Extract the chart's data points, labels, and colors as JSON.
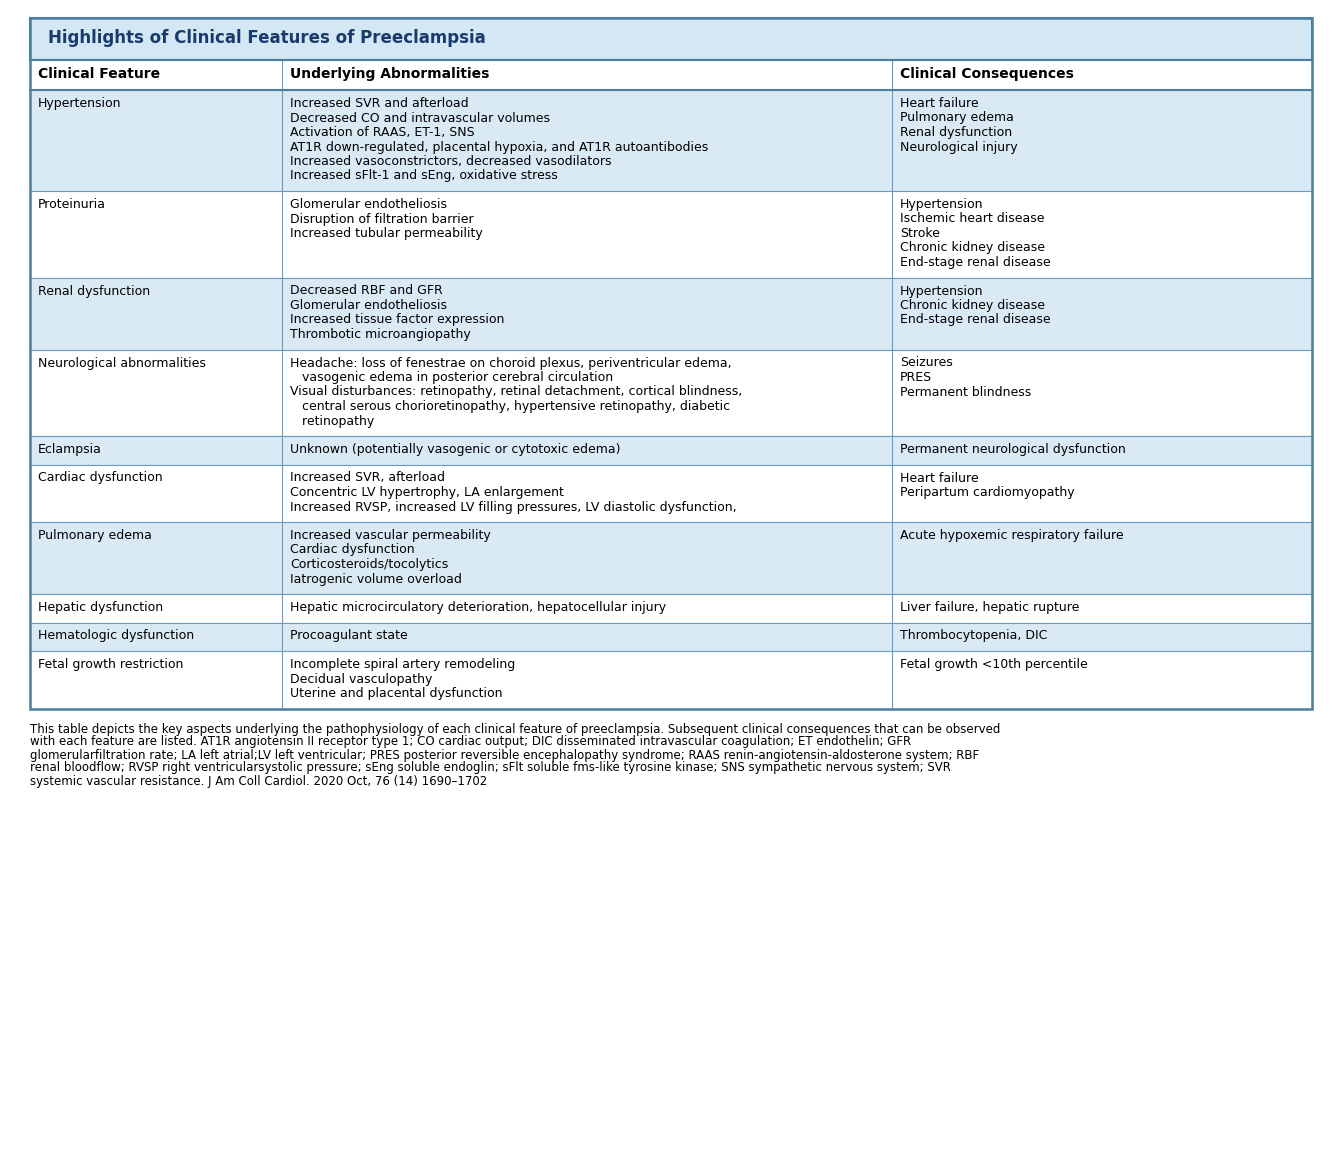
{
  "title": "Highlights of Clinical Features of Preeclampsia",
  "title_color": "#1a3a6b",
  "title_bg_color": "#d3e8f4",
  "header_bg_color": "#ffffff",
  "row_bg_even": "#daeaf5",
  "row_bg_odd": "#ffffff",
  "border_color": "#6a9cbf",
  "outer_border_color": "#4a7fa0",
  "col_headers": [
    "Clinical Feature",
    "Underlying Abnormalities",
    "Clinical Consequences"
  ],
  "rows": [
    {
      "feature": "Hypertension",
      "abnormalities": [
        "Increased SVR and afterload",
        "Decreased CO and intravascular volumes",
        "Activation of RAAS, ET-1, SNS",
        "AT1R down-regulated, placental hypoxia, and AT1R autoantibodies",
        "Increased vasoconstrictors, decreased vasodilators",
        "Increased sFlt-1 and sEng, oxidative stress"
      ],
      "consequences": [
        "Heart failure",
        "Pulmonary edema",
        "Renal dysfunction",
        "Neurological injury"
      ]
    },
    {
      "feature": "Proteinuria",
      "abnormalities": [
        "Glomerular endotheliosis",
        "Disruption of filtration barrier",
        "Increased tubular permeability"
      ],
      "consequences": [
        "Hypertension",
        "Ischemic heart disease",
        "Stroke",
        "Chronic kidney disease",
        "End-stage renal disease"
      ]
    },
    {
      "feature": "Renal dysfunction",
      "abnormalities": [
        "Decreased RBF and GFR",
        "Glomerular endotheliosis",
        "Increased tissue factor expression",
        "Thrombotic microangiopathy"
      ],
      "consequences": [
        "Hypertension",
        "Chronic kidney disease",
        "End-stage renal disease"
      ]
    },
    {
      "feature": "Neurological abnormalities",
      "abnormalities": [
        "Headache: loss of fenestrae on choroid plexus, periventricular edema,",
        "   vasogenic edema in posterior cerebral circulation",
        "Visual disturbances: retinopathy, retinal detachment, cortical blindness,",
        "   central serous chorioretinopathy, hypertensive retinopathy, diabetic",
        "   retinopathy"
      ],
      "consequences": [
        "Seizures",
        "PRES",
        "Permanent blindness"
      ]
    },
    {
      "feature": "Eclampsia",
      "abnormalities": [
        "Unknown (potentially vasogenic or cytotoxic edema)"
      ],
      "consequences": [
        "Permanent neurological dysfunction"
      ]
    },
    {
      "feature": "Cardiac dysfunction",
      "abnormalities": [
        "Increased SVR, afterload",
        "Concentric LV hypertrophy, LA enlargement",
        "Increased RVSP, increased LV filling pressures, LV diastolic dysfunction,"
      ],
      "consequences": [
        "Heart failure",
        "Peripartum cardiomyopathy"
      ]
    },
    {
      "feature": "Pulmonary edema",
      "abnormalities": [
        "Increased vascular permeability",
        "Cardiac dysfunction",
        "Corticosteroids/tocolytics",
        "Iatrogenic volume overload"
      ],
      "consequences": [
        "Acute hypoxemic respiratory failure"
      ]
    },
    {
      "feature": "Hepatic dysfunction",
      "abnormalities": [
        "Hepatic microcirculatory deterioration, hepatocellular injury"
      ],
      "consequences": [
        "Liver failure, hepatic rupture"
      ]
    },
    {
      "feature": "Hematologic dysfunction",
      "abnormalities": [
        "Procoagulant state"
      ],
      "consequences": [
        "Thrombocytopenia, DIC"
      ]
    },
    {
      "feature": "Fetal growth restriction",
      "abnormalities": [
        "Incomplete spiral artery remodeling",
        "Decidual vasculopathy",
        "Uterine and placental dysfunction"
      ],
      "consequences": [
        "Fetal growth <10th percentile"
      ]
    }
  ],
  "footnote_lines": [
    "This table depicts the key aspects underlying the pathophysiology of each clinical feature of preeclampsia. Subsequent clinical consequences that can be observed",
    "with each feature are listed. AT1R angiotensin II receptor type 1; CO cardiac output; DIC disseminated intravascular coagulation; ET endothelin; GFR",
    "glomerularfiltration rate; LA left atrial;LV left ventricular; PRES posterior reversible encephalopathy syndrome; RAAS renin-angiotensin-aldosterone system; RBF",
    "renal bloodflow; RVSP right ventricularsystolic pressure; sEng soluble endoglin; sFlt soluble fms-like tyrosine kinase; SNS sympathetic nervous system; SVR",
    "systemic vascular resistance. J Am Coll Cardiol. 2020 Oct, 76 (14) 1690–1702"
  ],
  "font_size": 9.0,
  "header_font_size": 10.0,
  "title_font_size": 12.0,
  "footnote_font_size": 8.5
}
